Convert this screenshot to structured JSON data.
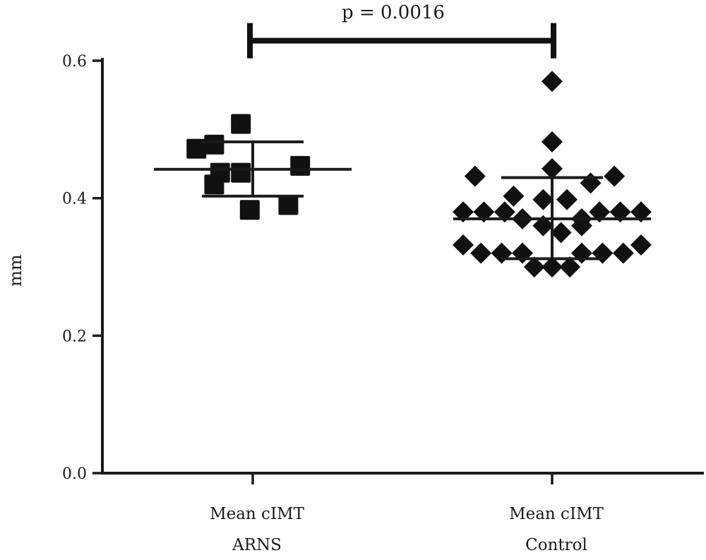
{
  "chart_data": {
    "type": "scatter",
    "ylabel": "mm",
    "ylim": [
      0,
      0.6
    ],
    "yticks": [
      "0.0",
      "0.2",
      "0.4",
      "0.6"
    ],
    "categories": [
      {
        "line1": "Mean cIMT",
        "line2": "ARNS"
      },
      {
        "line1": "Mean cIMT",
        "line2": "Control"
      }
    ],
    "series": [
      {
        "marker": "square",
        "mean": 0.442,
        "sd_upper": 0.482,
        "sd_lower": 0.403,
        "points": [
          {
            "x": -0.04,
            "y": 0.508
          },
          {
            "x": -0.13,
            "y": 0.478
          },
          {
            "x": -0.19,
            "y": 0.472
          },
          {
            "x": -0.04,
            "y": 0.437
          },
          {
            "x": -0.11,
            "y": 0.437
          },
          {
            "x": 0.16,
            "y": 0.447
          },
          {
            "x": -0.13,
            "y": 0.42
          },
          {
            "x": 0.12,
            "y": 0.39
          },
          {
            "x": -0.01,
            "y": 0.383
          }
        ]
      },
      {
        "marker": "diamond",
        "mean": 0.37,
        "sd_upper": 0.43,
        "sd_lower": 0.312,
        "points": [
          {
            "x": 0.0,
            "y": 0.57
          },
          {
            "x": 0.0,
            "y": 0.482
          },
          {
            "x": 0.0,
            "y": 0.443
          },
          {
            "x": -0.26,
            "y": 0.432
          },
          {
            "x": 0.21,
            "y": 0.432
          },
          {
            "x": 0.13,
            "y": 0.422
          },
          {
            "x": -0.13,
            "y": 0.403
          },
          {
            "x": -0.03,
            "y": 0.398
          },
          {
            "x": 0.05,
            "y": 0.398
          },
          {
            "x": -0.3,
            "y": 0.38
          },
          {
            "x": -0.23,
            "y": 0.38
          },
          {
            "x": -0.16,
            "y": 0.38
          },
          {
            "x": 0.16,
            "y": 0.38
          },
          {
            "x": 0.23,
            "y": 0.38
          },
          {
            "x": 0.3,
            "y": 0.38
          },
          {
            "x": -0.1,
            "y": 0.37
          },
          {
            "x": 0.1,
            "y": 0.37
          },
          {
            "x": -0.03,
            "y": 0.36
          },
          {
            "x": 0.1,
            "y": 0.36
          },
          {
            "x": 0.03,
            "y": 0.35
          },
          {
            "x": -0.3,
            "y": 0.332
          },
          {
            "x": 0.3,
            "y": 0.332
          },
          {
            "x": -0.24,
            "y": 0.32
          },
          {
            "x": -0.17,
            "y": 0.32
          },
          {
            "x": -0.1,
            "y": 0.32
          },
          {
            "x": 0.1,
            "y": 0.32
          },
          {
            "x": 0.17,
            "y": 0.32
          },
          {
            "x": 0.24,
            "y": 0.32
          },
          {
            "x": -0.06,
            "y": 0.3
          },
          {
            "x": 0.0,
            "y": 0.3
          },
          {
            "x": 0.06,
            "y": 0.3
          }
        ]
      }
    ],
    "annotation": {
      "text": "p = 0.0016",
      "between": [
        0,
        1
      ],
      "y": 0.625
    }
  }
}
